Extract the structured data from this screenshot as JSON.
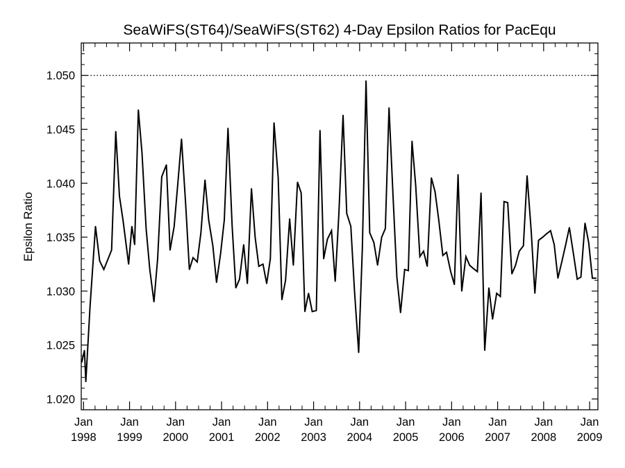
{
  "chart_data": {
    "type": "line",
    "title": "SeaWiFS(ST64)/SeaWiFS(ST62) 4-Day Epsilon Ratios for PacEqu",
    "xlabel": "",
    "ylabel": "Epsilon Ratio",
    "xlim": [
      1997.95,
      2009.18
    ],
    "ylim": [
      1.019,
      1.053
    ],
    "reference_line": {
      "y": 1.05,
      "style": "dotted"
    },
    "y_ticks": [
      "1.020",
      "1.025",
      "1.030",
      "1.035",
      "1.040",
      "1.045",
      "1.050"
    ],
    "y_tick_values": [
      1.02,
      1.025,
      1.03,
      1.035,
      1.04,
      1.045,
      1.05
    ],
    "x_ticks": [
      {
        "value": 1998,
        "month": "Jan",
        "year": "1998"
      },
      {
        "value": 1999,
        "month": "Jan",
        "year": "1999"
      },
      {
        "value": 2000,
        "month": "Jan",
        "year": "2000"
      },
      {
        "value": 2001,
        "month": "Jan",
        "year": "2001"
      },
      {
        "value": 2002,
        "month": "Jan",
        "year": "2002"
      },
      {
        "value": 2003,
        "month": "Jan",
        "year": "2003"
      },
      {
        "value": 2004,
        "month": "Jan",
        "year": "2004"
      },
      {
        "value": 2005,
        "month": "Jan",
        "year": "2005"
      },
      {
        "value": 2006,
        "month": "Jan",
        "year": "2006"
      },
      {
        "value": 2007,
        "month": "Jan",
        "year": "2007"
      },
      {
        "value": 2008,
        "month": "Jan",
        "year": "2008"
      },
      {
        "value": 2009,
        "month": "Jan",
        "year": "2009"
      }
    ],
    "series": [
      {
        "x": [
          1997.96,
          1998.02,
          1998.05,
          1998.14,
          1998.26,
          1998.35,
          1998.44,
          1998.61,
          1998.7,
          1998.78,
          1998.86,
          1998.98,
          1999.05,
          1999.11,
          1999.19,
          1999.27,
          1999.36,
          1999.44,
          1999.53,
          1999.61,
          1999.7,
          1999.8,
          1999.88,
          1999.97,
          2000.05,
          2000.13,
          2000.22,
          2000.3,
          2000.38,
          2000.47,
          2000.55,
          2000.64,
          2000.72,
          2000.81,
          2000.89,
          2000.98,
          2001.06,
          2001.14,
          2001.23,
          2001.31,
          2001.39,
          2001.48,
          2001.56,
          2001.65,
          2001.73,
          2001.81,
          2001.9,
          2001.98,
          2002.06,
          2002.14,
          2002.23,
          2002.31,
          2002.39,
          2002.48,
          2002.56,
          2002.65,
          2002.73,
          2002.81,
          2002.89,
          2002.97,
          2003.06,
          2003.14,
          2003.22,
          2003.3,
          2003.39,
          2003.47,
          2003.55,
          2003.64,
          2003.72,
          2003.81,
          2003.89,
          2003.98,
          2004.06,
          2004.14,
          2004.22,
          2004.31,
          2004.39,
          2004.48,
          2004.56,
          2004.64,
          2004.73,
          2004.81,
          2004.89,
          2004.98,
          2005.06,
          2005.14,
          2005.22,
          2005.31,
          2005.39,
          2005.47,
          2005.56,
          2005.64,
          2005.72,
          2005.81,
          2005.89,
          2005.98,
          2006.06,
          2006.14,
          2006.22,
          2006.31,
          2006.39,
          2006.47,
          2006.56,
          2006.64,
          2006.72,
          2006.81,
          2006.89,
          2006.98,
          2007.06,
          2007.14,
          2007.22,
          2007.31,
          2007.39,
          2007.47,
          2007.56,
          2007.64,
          2007.73,
          2007.81,
          2007.89,
          2007.98,
          2008.06,
          2008.15,
          2008.23,
          2008.31,
          2008.4,
          2008.48,
          2008.56,
          2008.65,
          2008.73,
          2008.81,
          2008.9,
          2008.98,
          2009.06,
          2009.14
        ],
        "values": [
          1.0234,
          1.0245,
          1.0216,
          1.0285,
          1.036,
          1.0328,
          1.032,
          1.0338,
          1.0448,
          1.0388,
          1.0365,
          1.0325,
          1.036,
          1.0343,
          1.0468,
          1.0428,
          1.0358,
          1.032,
          1.029,
          1.033,
          1.0406,
          1.0417,
          1.0338,
          1.036,
          1.04,
          1.0441,
          1.038,
          1.032,
          1.0331,
          1.0327,
          1.0354,
          1.0403,
          1.0366,
          1.0342,
          1.0308,
          1.0335,
          1.0366,
          1.0451,
          1.036,
          1.0303,
          1.0311,
          1.0343,
          1.0307,
          1.0395,
          1.035,
          1.0323,
          1.0325,
          1.0307,
          1.033,
          1.0456,
          1.0405,
          1.0292,
          1.031,
          1.0367,
          1.0324,
          1.0401,
          1.0391,
          1.0281,
          1.0298,
          1.0281,
          1.0282,
          1.0449,
          1.033,
          1.0348,
          1.0356,
          1.0309,
          1.0372,
          1.0463,
          1.0372,
          1.036,
          1.03,
          1.0243,
          1.034,
          1.0495,
          1.0354,
          1.0345,
          1.0324,
          1.035,
          1.0358,
          1.047,
          1.0385,
          1.0313,
          1.028,
          1.032,
          1.0319,
          1.0439,
          1.0398,
          1.0332,
          1.0337,
          1.0323,
          1.0405,
          1.0392,
          1.0366,
          1.0333,
          1.0336,
          1.0318,
          1.0306,
          1.0408,
          1.03,
          1.0332,
          1.0324,
          1.0321,
          1.0318,
          1.0391,
          1.0245,
          1.0303,
          1.0274,
          1.0298,
          1.0295,
          1.0383,
          1.0382,
          1.0316,
          1.0324,
          1.0337,
          1.0342,
          1.0407,
          1.0356,
          1.0298,
          1.0347,
          1.035,
          1.0353,
          1.0356,
          1.0343,
          1.0312,
          1.0328,
          1.0343,
          1.0359,
          1.0334,
          1.0311,
          1.0313,
          1.0363,
          1.0345,
          1.0312,
          1.0312
        ]
      }
    ]
  }
}
